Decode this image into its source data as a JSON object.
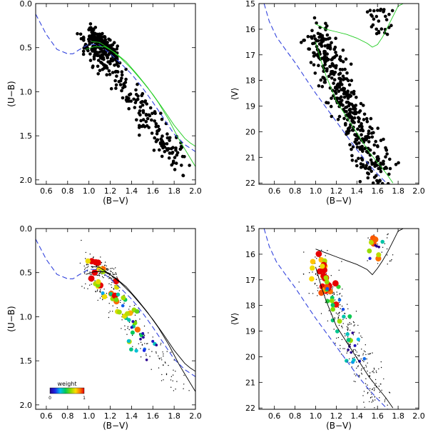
{
  "figure": {
    "description_id": "two-color-and-color-magnitude-diagrams",
    "colors": {
      "isochrone": "#22cc22",
      "zams": "#3344dd",
      "isochrone_bottom": "#000000",
      "stars": "#000000"
    }
  },
  "chart_data": [
    {
      "id": "top-left",
      "type": "scatter",
      "title": "",
      "xlabel": "(B−V)",
      "ylabel": "(U−B)",
      "xlim": [
        0.5,
        2.0
      ],
      "ylim": [
        2.05,
        0.0
      ],
      "xticks": [
        0.6,
        0.8,
        1.0,
        1.2,
        1.4,
        1.6,
        1.8,
        2.0
      ],
      "xtick_labels": [
        "0.6",
        "0.8",
        "1.0",
        "1.2",
        "1.4",
        "1.6",
        "1.8",
        "2.0"
      ],
      "yticks": [
        0.0,
        0.5,
        1.0,
        1.5,
        2.0
      ],
      "ytick_labels": [
        "0.0",
        "0.5",
        "1.0",
        "1.5",
        "2.0"
      ],
      "series": [
        {
          "name": "stars",
          "kind": "scatter",
          "seed": 11,
          "n": 420,
          "x_center": 1.22,
          "y_center": 0.72
        },
        {
          "name": "ZAMS",
          "kind": "line",
          "style": "dashed",
          "x": [
            0.5,
            0.6,
            0.7,
            0.8,
            0.85,
            0.9,
            1.0,
            1.1,
            1.2,
            1.3,
            1.4,
            1.5,
            1.6,
            1.7,
            1.8,
            1.9,
            2.0
          ],
          "y": [
            0.12,
            0.35,
            0.52,
            0.57,
            0.57,
            0.53,
            0.46,
            0.47,
            0.57,
            0.68,
            0.8,
            0.95,
            1.12,
            1.3,
            1.48,
            1.6,
            1.68
          ]
        },
        {
          "name": "isochrone 1",
          "kind": "line",
          "style": "solid",
          "x": [
            0.97,
            1.05,
            1.15,
            1.25,
            1.35,
            1.45,
            1.55,
            1.65,
            1.75,
            1.85,
            1.95,
            2.0
          ],
          "y": [
            0.52,
            0.49,
            0.49,
            0.56,
            0.66,
            0.8,
            0.95,
            1.12,
            1.32,
            1.55,
            1.75,
            1.85
          ]
        },
        {
          "name": "isochrone 2",
          "kind": "line",
          "style": "solid",
          "x": [
            1.02,
            1.1,
            1.2,
            1.3,
            1.4,
            1.5,
            1.6,
            1.7,
            1.8,
            1.9,
            1.95,
            2.0
          ],
          "y": [
            0.43,
            0.44,
            0.52,
            0.62,
            0.74,
            0.88,
            1.03,
            1.2,
            1.38,
            1.53,
            1.58,
            1.62
          ]
        }
      ]
    },
    {
      "id": "top-right",
      "type": "scatter",
      "title": "",
      "xlabel": "(B−V)",
      "ylabel": "⟨V⟩",
      "xlim": [
        0.45,
        2.0
      ],
      "ylim": [
        22.05,
        15.0
      ],
      "xticks": [
        0.6,
        0.8,
        1.0,
        1.2,
        1.4,
        1.6,
        1.8,
        2.0
      ],
      "xtick_labels": [
        "0.6",
        "0.8",
        "1.0",
        "1.2",
        "1.4",
        "1.6",
        "1.8",
        "2.0"
      ],
      "yticks": [
        15,
        16,
        17,
        18,
        19,
        20,
        21,
        22
      ],
      "ytick_labels": [
        "15",
        "16",
        "17",
        "18",
        "19",
        "20",
        "21",
        "22"
      ],
      "series": [
        {
          "name": "stars",
          "kind": "scatter",
          "seed": 23,
          "n": 440,
          "x_center": 1.2,
          "y_center": 19.0
        },
        {
          "name": "ZAMS",
          "kind": "line",
          "style": "dashed",
          "x": [
            0.5,
            0.55,
            0.62,
            0.7,
            0.8,
            0.9,
            1.0,
            1.1,
            1.2,
            1.3,
            1.4,
            1.5,
            1.6,
            1.7
          ],
          "y": [
            15.0,
            15.7,
            16.3,
            16.75,
            17.3,
            17.9,
            18.5,
            19.05,
            19.6,
            20.15,
            20.7,
            21.2,
            21.65,
            22.05
          ]
        },
        {
          "name": "isochrone",
          "kind": "line",
          "style": "solid",
          "x": [
            1.0,
            1.05,
            1.1,
            1.15,
            1.2,
            1.28,
            1.36,
            1.44,
            1.52,
            1.6,
            1.68,
            1.75
          ],
          "y": [
            16.5,
            17.2,
            17.8,
            18.3,
            18.8,
            19.3,
            19.8,
            20.3,
            20.8,
            21.2,
            21.6,
            22.0
          ]
        },
        {
          "name": "giant branch",
          "kind": "line",
          "style": "solid",
          "x": [
            1.0,
            1.1,
            1.2,
            1.3,
            1.4,
            1.5,
            1.55,
            1.6,
            1.65,
            1.7,
            1.75,
            1.8,
            1.85
          ],
          "y": [
            15.8,
            16.0,
            16.1,
            16.2,
            16.35,
            16.55,
            16.7,
            16.6,
            16.3,
            15.9,
            15.5,
            15.1,
            15.0
          ]
        }
      ]
    },
    {
      "id": "bottom-left",
      "type": "scatter",
      "title": "",
      "xlabel": "(B−V)",
      "ylabel": "(U−B)",
      "xlim": [
        0.5,
        2.0
      ],
      "ylim": [
        2.05,
        0.0
      ],
      "xticks": [
        0.6,
        0.8,
        1.0,
        1.2,
        1.4,
        1.6,
        1.8,
        2.0
      ],
      "xtick_labels": [
        "0.6",
        "0.8",
        "1.0",
        "1.2",
        "1.4",
        "1.6",
        "1.8",
        "2.0"
      ],
      "yticks": [
        0.0,
        0.5,
        1.0,
        1.5,
        2.0
      ],
      "ytick_labels": [
        "0.0",
        "0.5",
        "1.0",
        "1.5",
        "2.0"
      ],
      "legend": {
        "title": "weight",
        "min_label": "0",
        "max_label": "1",
        "placement": "bottom-left"
      },
      "series": [
        {
          "name": "field stars",
          "kind": "scatter",
          "seed": 31,
          "n": 300,
          "x_center": 1.25,
          "y_center": 0.8
        },
        {
          "name": "weighted stars",
          "kind": "weighted",
          "seed": 37,
          "n": 60,
          "x_center": 1.2,
          "y_center": 0.7
        },
        {
          "name": "ZAMS",
          "kind": "line",
          "style": "dashed",
          "x": [
            0.5,
            0.6,
            0.7,
            0.8,
            0.85,
            0.9,
            1.0,
            1.1,
            1.2,
            1.3,
            1.4,
            1.5,
            1.6,
            1.7,
            1.8,
            1.9,
            2.0
          ],
          "y": [
            0.12,
            0.35,
            0.52,
            0.57,
            0.57,
            0.53,
            0.46,
            0.47,
            0.57,
            0.68,
            0.8,
            0.95,
            1.12,
            1.3,
            1.48,
            1.6,
            1.68
          ]
        },
        {
          "name": "isochrone 1",
          "kind": "line",
          "style": "solid",
          "x": [
            0.97,
            1.05,
            1.15,
            1.25,
            1.35,
            1.45,
            1.55,
            1.65,
            1.75,
            1.85,
            1.95,
            2.0
          ],
          "y": [
            0.52,
            0.49,
            0.49,
            0.56,
            0.66,
            0.8,
            0.95,
            1.12,
            1.32,
            1.55,
            1.75,
            1.85
          ]
        },
        {
          "name": "isochrone 2",
          "kind": "line",
          "style": "solid",
          "x": [
            1.02,
            1.1,
            1.2,
            1.3,
            1.4,
            1.5,
            1.6,
            1.7,
            1.8,
            1.9,
            1.95,
            2.0
          ],
          "y": [
            0.43,
            0.44,
            0.52,
            0.62,
            0.74,
            0.88,
            1.03,
            1.2,
            1.38,
            1.53,
            1.58,
            1.62
          ]
        }
      ]
    },
    {
      "id": "bottom-right",
      "type": "scatter",
      "title": "",
      "xlabel": "(B−V)",
      "ylabel": "⟨V⟩",
      "xlim": [
        0.45,
        2.0
      ],
      "ylim": [
        22.05,
        15.0
      ],
      "xticks": [
        0.6,
        0.8,
        1.0,
        1.2,
        1.4,
        1.6,
        1.8,
        2.0
      ],
      "xtick_labels": [
        "0.6",
        "0.8",
        "1.0",
        "1.2",
        "1.4",
        "1.6",
        "1.8",
        "2.0"
      ],
      "yticks": [
        15,
        16,
        17,
        18,
        19,
        20,
        21,
        22
      ],
      "ytick_labels": [
        "15",
        "16",
        "17",
        "18",
        "19",
        "20",
        "21",
        "22"
      ],
      "series": [
        {
          "name": "field stars",
          "kind": "scatter",
          "seed": 41,
          "n": 320,
          "x_center": 1.2,
          "y_center": 19.0
        },
        {
          "name": "weighted stars",
          "kind": "weighted",
          "seed": 47,
          "n": 70,
          "x_center": 1.15,
          "y_center": 18.3
        },
        {
          "name": "ZAMS",
          "kind": "line",
          "style": "dashed",
          "x": [
            0.5,
            0.55,
            0.62,
            0.7,
            0.8,
            0.9,
            1.0,
            1.1,
            1.2,
            1.3,
            1.4,
            1.5,
            1.6,
            1.7
          ],
          "y": [
            15.0,
            15.7,
            16.3,
            16.75,
            17.3,
            17.9,
            18.5,
            19.05,
            19.6,
            20.15,
            20.7,
            21.2,
            21.65,
            22.05
          ]
        },
        {
          "name": "isochrone",
          "kind": "line",
          "style": "solid",
          "x": [
            1.0,
            1.05,
            1.1,
            1.15,
            1.2,
            1.28,
            1.36,
            1.44,
            1.52,
            1.6,
            1.68,
            1.75
          ],
          "y": [
            16.5,
            17.2,
            17.8,
            18.3,
            18.8,
            19.3,
            19.8,
            20.3,
            20.8,
            21.2,
            21.6,
            22.0
          ]
        },
        {
          "name": "giant branch",
          "kind": "line",
          "style": "solid",
          "x": [
            1.0,
            1.1,
            1.2,
            1.3,
            1.4,
            1.5,
            1.55,
            1.6,
            1.65,
            1.7,
            1.75,
            1.8,
            1.85
          ],
          "y": [
            15.8,
            15.95,
            16.1,
            16.25,
            16.4,
            16.6,
            16.8,
            16.55,
            16.25,
            15.9,
            15.5,
            15.1,
            15.0
          ]
        }
      ]
    }
  ]
}
